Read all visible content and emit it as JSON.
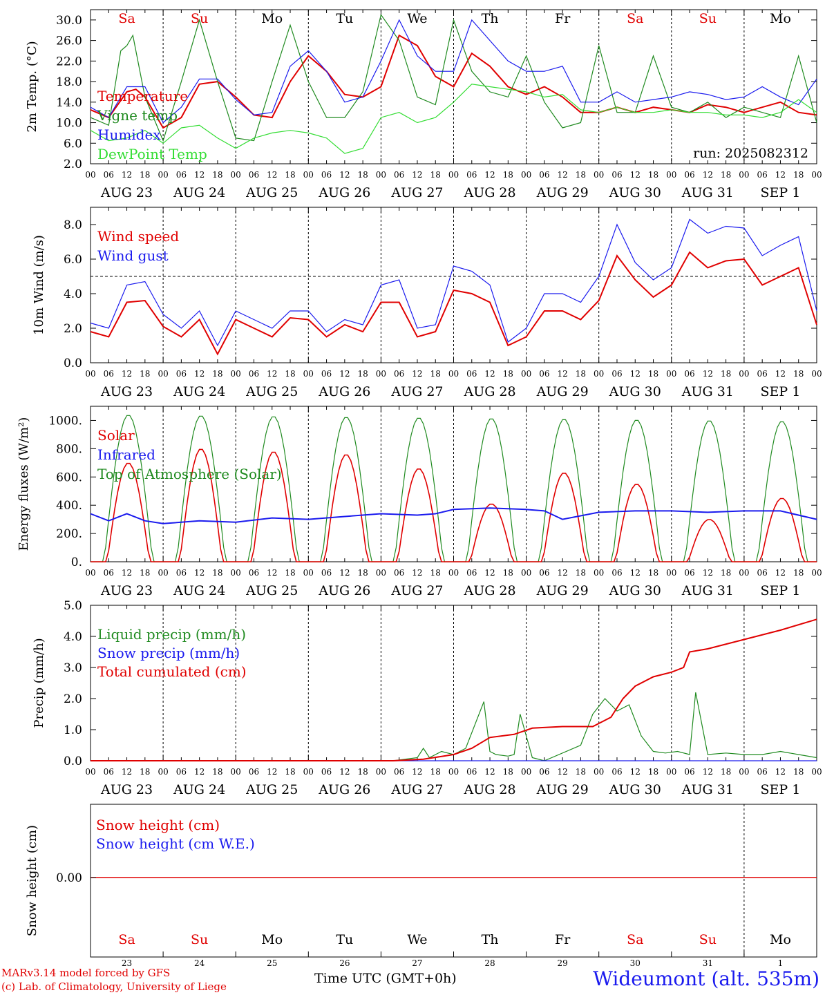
{
  "footer": {
    "credit_line1": "MARv3.14 model forced by GFS",
    "credit_line2": "(c) Lab. of Climatology, University of Liege",
    "time_label": "Time UTC (GMT+0h)",
    "station": "Wideumont (alt. 535m)"
  },
  "colors": {
    "red": "#e00000",
    "blue": "#1a1aee",
    "green": "#1f8a1f",
    "lightgreen": "#33dd33",
    "axis": "#000000"
  },
  "chart_data": [
    {
      "type": "line",
      "name": "temperature",
      "ylabel": "2m Temp. (°C)",
      "ylim": [
        2,
        32
      ],
      "yticks": [
        "2.0",
        "6.0",
        "10.0",
        "14.0",
        "18.0",
        "22.0",
        "26.0",
        "30.0"
      ],
      "annotation": "run: 2025082312",
      "day_names": [
        "Sa",
        "Su",
        "Mo",
        "Tu",
        "We",
        "Th",
        "Fr",
        "Sa",
        "Su",
        "Mo"
      ],
      "date_labels": [
        "AUG 23",
        "AUG 24",
        "AUG 25",
        "AUG 26",
        "AUG 27",
        "AUG 28",
        "AUG 29",
        "AUG 30",
        "AUG 31",
        "SEP  1"
      ],
      "hour_ticks": [
        "00",
        "06",
        "12",
        "18"
      ],
      "series": [
        {
          "name": "Temperature",
          "color": "red",
          "x": [
            0,
            6,
            12,
            15,
            18,
            24,
            30,
            36,
            42,
            48,
            54,
            60,
            66,
            72,
            78,
            84,
            90,
            96,
            102,
            108,
            114,
            120,
            126,
            132,
            138,
            144,
            150,
            156,
            162,
            168,
            174,
            180,
            186,
            192,
            198,
            204,
            210,
            216,
            222,
            228,
            234,
            240
          ],
          "y": [
            12.5,
            11,
            16,
            16.5,
            15,
            9,
            11,
            17.5,
            18,
            15,
            11.5,
            11,
            18,
            23,
            20,
            15.5,
            15,
            17,
            27,
            25,
            19,
            17,
            23.5,
            21,
            17,
            15.5,
            17,
            15,
            12,
            12,
            13,
            12,
            13,
            12.5,
            12,
            13.5,
            13,
            12,
            13,
            14,
            12,
            11.5
          ]
        },
        {
          "name": "Vigne temp",
          "color": "green",
          "x": [
            0,
            6,
            10,
            12,
            14,
            18,
            24,
            30,
            36,
            42,
            48,
            54,
            60,
            66,
            72,
            78,
            84,
            90,
            96,
            102,
            108,
            114,
            120,
            126,
            132,
            138,
            144,
            150,
            156,
            162,
            168,
            174,
            180,
            186,
            192,
            198,
            204,
            210,
            216,
            222,
            228,
            234,
            240
          ],
          "y": [
            11,
            9.5,
            24,
            25,
            27,
            15,
            6.5,
            18,
            30,
            18,
            7,
            6.5,
            18,
            29,
            18,
            11,
            11,
            16,
            31,
            26,
            15,
            13.5,
            30,
            20,
            16,
            15,
            23,
            14,
            9,
            10,
            25,
            12,
            12,
            23,
            13,
            12,
            14,
            11,
            13,
            12,
            11,
            23,
            10
          ]
        },
        {
          "name": "Humidex",
          "color": "blue",
          "x": [
            0,
            6,
            12,
            18,
            24,
            30,
            36,
            42,
            48,
            54,
            60,
            66,
            72,
            78,
            84,
            90,
            96,
            102,
            108,
            114,
            120,
            126,
            132,
            138,
            144,
            150,
            156,
            162,
            168,
            174,
            180,
            186,
            192,
            198,
            204,
            210,
            216,
            222,
            228,
            234,
            240
          ],
          "y": [
            13,
            11,
            17,
            17,
            10,
            13,
            18.5,
            18.5,
            14.5,
            11.5,
            12,
            21,
            24,
            20,
            14,
            15,
            22,
            30,
            23,
            20,
            20,
            30,
            26,
            22,
            20,
            20,
            21,
            14,
            14,
            16,
            14,
            14.5,
            15,
            16,
            15.5,
            14.5,
            15,
            17,
            15,
            13.5,
            18.5
          ]
        },
        {
          "name": "DewPoint Temp",
          "color": "lightgreen",
          "x": [
            0,
            6,
            12,
            18,
            24,
            30,
            36,
            42,
            48,
            54,
            60,
            66,
            72,
            78,
            84,
            90,
            96,
            102,
            108,
            114,
            120,
            126,
            132,
            138,
            144,
            150,
            156,
            162,
            168,
            174,
            180,
            186,
            192,
            198,
            204,
            210,
            216,
            222,
            228,
            234,
            240
          ],
          "y": [
            8.5,
            6.5,
            7,
            8.5,
            6,
            9,
            9.5,
            7,
            5,
            7,
            8,
            8.5,
            8,
            7,
            4,
            5,
            11,
            12,
            10,
            11,
            14,
            17.5,
            17,
            16.5,
            16,
            15,
            15.5,
            12.5,
            12,
            13,
            12,
            12,
            12.5,
            12,
            12,
            11.5,
            11.5,
            11,
            12,
            14.5,
            12
          ]
        }
      ]
    },
    {
      "type": "line",
      "name": "wind",
      "ylabel": "10m Wind (m/s)",
      "ylim": [
        0,
        9
      ],
      "yticks": [
        "0.0",
        "2.0",
        "4.0",
        "6.0",
        "8.0"
      ],
      "reference_line": 5,
      "series": [
        {
          "name": "Wind speed",
          "color": "red",
          "x": [
            0,
            6,
            12,
            18,
            24,
            30,
            36,
            42,
            48,
            54,
            60,
            66,
            72,
            78,
            84,
            90,
            96,
            102,
            108,
            114,
            120,
            126,
            132,
            138,
            144,
            150,
            156,
            162,
            168,
            174,
            180,
            186,
            192,
            198,
            204,
            210,
            216,
            222,
            228,
            234,
            240
          ],
          "y": [
            1.8,
            1.5,
            3.5,
            3.6,
            2.1,
            1.5,
            2.5,
            0.5,
            2.5,
            2,
            1.5,
            2.6,
            2.5,
            1.5,
            2.2,
            1.8,
            3.5,
            3.5,
            1.5,
            1.8,
            4.2,
            4,
            3.5,
            1,
            1.5,
            3,
            3,
            2.5,
            3.6,
            6.2,
            4.8,
            3.8,
            4.5,
            6.4,
            5.5,
            5.9,
            6.0,
            4.5,
            5.0,
            5.5,
            2.2
          ]
        },
        {
          "name": "Wind gust",
          "color": "blue",
          "x": [
            0,
            6,
            12,
            18,
            24,
            30,
            36,
            42,
            48,
            54,
            60,
            66,
            72,
            78,
            84,
            90,
            96,
            102,
            108,
            114,
            120,
            126,
            132,
            138,
            144,
            150,
            156,
            162,
            168,
            174,
            180,
            186,
            192,
            198,
            204,
            210,
            216,
            222,
            228,
            234,
            240
          ],
          "y": [
            2.3,
            2,
            4.5,
            4.7,
            2.8,
            2,
            3,
            1,
            3,
            2.5,
            2,
            3,
            3,
            1.8,
            2.5,
            2.2,
            4.5,
            4.8,
            2,
            2.2,
            5.6,
            5.3,
            4.5,
            1.2,
            2,
            4,
            4,
            3.5,
            5,
            8,
            5.8,
            4.8,
            5.5,
            8.3,
            7.5,
            7.9,
            7.8,
            6.2,
            6.8,
            7.3,
            3
          ]
        }
      ]
    },
    {
      "type": "line",
      "name": "energy",
      "ylabel": "Energy fluxes (W/m²)",
      "ylim": [
        0,
        1100
      ],
      "yticks": [
        "0.",
        "200.",
        "400.",
        "600.",
        "800.",
        "1000."
      ],
      "series": [
        {
          "name": "Solar",
          "color": "red",
          "peaks": [
            700,
            800,
            780,
            760,
            660,
            410,
            630,
            550,
            300,
            450
          ]
        },
        {
          "name": "Infrared",
          "color": "blue",
          "x": [
            0,
            6,
            12,
            18,
            24,
            36,
            48,
            60,
            72,
            84,
            96,
            108,
            114,
            120,
            132,
            144,
            150,
            156,
            168,
            180,
            192,
            204,
            216,
            228,
            240
          ],
          "y": [
            340,
            290,
            340,
            290,
            270,
            290,
            280,
            310,
            300,
            320,
            340,
            330,
            340,
            370,
            380,
            370,
            360,
            300,
            350,
            360,
            360,
            350,
            360,
            360,
            300
          ]
        },
        {
          "name": "Top of Atmosphere (Solar)",
          "color": "green",
          "peaks": [
            1040,
            1035,
            1030,
            1025,
            1020,
            1015,
            1010,
            1005,
            1000,
            995
          ]
        }
      ]
    },
    {
      "type": "line",
      "name": "precip",
      "ylabel": "Precip (mm/h)",
      "ylim": [
        0,
        5
      ],
      "yticks": [
        "0.0",
        "1.0",
        "2.0",
        "3.0",
        "4.0",
        "5.0"
      ],
      "series": [
        {
          "name": "Liquid precip (mm/h)",
          "color": "green",
          "x": [
            0,
            100,
            108,
            110,
            112,
            116,
            120,
            124,
            130,
            132,
            134,
            138,
            142,
            146,
            140,
            150,
            162,
            166,
            170,
            174,
            178,
            182,
            186,
            190,
            194,
            198,
            200,
            204,
            210,
            216,
            222,
            228,
            234,
            240
          ],
          "y": [
            0,
            0,
            0.1,
            0.4,
            0.1,
            0.3,
            0.2,
            0.4,
            1.9,
            0.3,
            0.2,
            0.15,
            1.5,
            0.1,
            0.2,
            0,
            0.5,
            1.5,
            2.0,
            1.6,
            1.8,
            0.8,
            0.3,
            0.25,
            0.3,
            0.2,
            2.2,
            0.2,
            0.25,
            0.2,
            0.2,
            0.3,
            0.2,
            0.1
          ]
        },
        {
          "name": "Snow precip (mm/h)",
          "color": "blue",
          "x": [
            0,
            240
          ],
          "y": [
            0,
            0
          ]
        },
        {
          "name": "Total cumulated (cm)",
          "color": "red",
          "x": [
            0,
            100,
            110,
            120,
            126,
            132,
            140,
            146,
            156,
            166,
            172,
            176,
            180,
            186,
            192,
            196,
            198,
            204,
            216,
            228,
            240
          ],
          "y": [
            0,
            0,
            0.05,
            0.2,
            0.4,
            0.75,
            0.85,
            1.05,
            1.1,
            1.1,
            1.4,
            2.0,
            2.4,
            2.7,
            2.85,
            3.0,
            3.5,
            3.6,
            3.9,
            4.2,
            4.55
          ]
        }
      ]
    },
    {
      "type": "line",
      "name": "snow",
      "ylabel": "Snow height (cm)",
      "yticks": [
        "0.00"
      ],
      "day_names": [
        "Sa",
        "Su",
        "Mo",
        "Tu",
        "We",
        "Th",
        "Fr",
        "Sa",
        "Su",
        "Mo"
      ],
      "day_numbers": [
        "23",
        "24",
        "25",
        "26",
        "27",
        "28",
        "29",
        "30",
        "31",
        "1"
      ],
      "series": [
        {
          "name": "Snow height (cm)",
          "color": "red",
          "x": [
            0,
            240
          ],
          "y": [
            0,
            0
          ]
        },
        {
          "name": "Snow height (cm W.E.)",
          "color": "blue",
          "x": [
            0,
            240
          ],
          "y": [
            0,
            0
          ]
        }
      ]
    }
  ]
}
